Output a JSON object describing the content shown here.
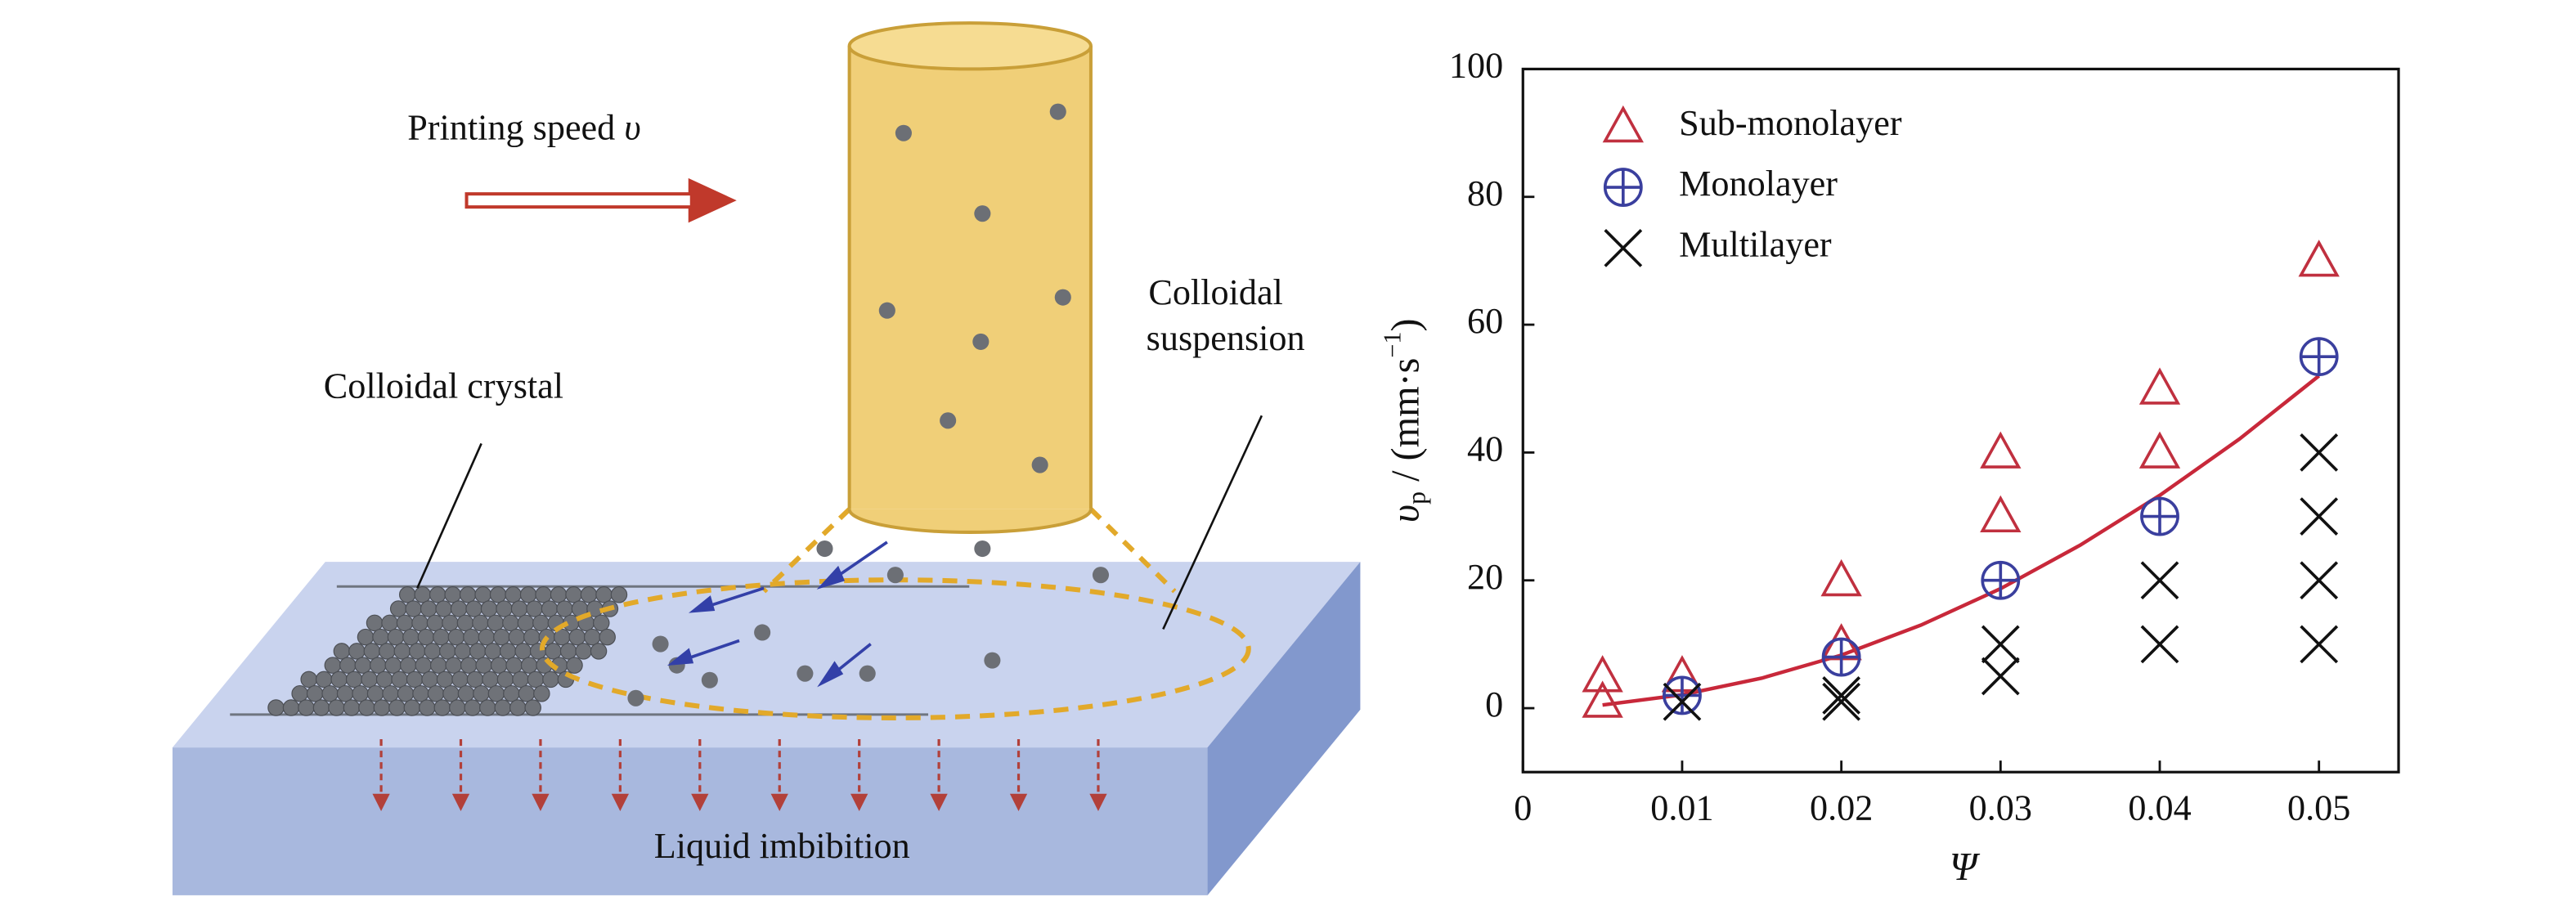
{
  "diagram": {
    "speed_label": {
      "text": "Printing speed ",
      "symbol": "υ"
    },
    "crystal_label": "Colloidal crystal",
    "suspension_label": [
      "Colloidal",
      "suspension"
    ],
    "imbibition_label": "Liquid imbibition"
  },
  "chart_data": {
    "type": "scatter",
    "x_label": "Ψ",
    "y_label": {
      "symbol": "υ",
      "subscript": "p",
      "unit": " / (mm·s",
      "superscript": "−1",
      "close": ")"
    },
    "xlim": [
      0,
      0.055
    ],
    "ylim": [
      -10,
      100
    ],
    "xticks": [
      0,
      0.01,
      0.02,
      0.03,
      0.04,
      0.05
    ],
    "yticks": [
      0,
      20,
      40,
      60,
      80,
      100
    ],
    "legend": "upper left",
    "series": [
      {
        "name": "Sub-monolayer",
        "marker": "triangle",
        "color": "#c0303f",
        "x": [
          0.005,
          0.005,
          0.01,
          0.02,
          0.02,
          0.03,
          0.03,
          0.04,
          0.04,
          0.05
        ],
        "values": [
          5,
          1,
          5,
          20,
          10,
          40,
          30,
          50,
          40,
          70
        ]
      },
      {
        "name": "Monolayer",
        "marker": "circle-plus",
        "color": "#3a3f9e",
        "x": [
          0.01,
          0.02,
          0.03,
          0.04,
          0.05
        ],
        "values": [
          2,
          8,
          20,
          30,
          55
        ]
      },
      {
        "name": "Multilayer",
        "marker": "cross",
        "color": "#111111",
        "x": [
          0.01,
          0.02,
          0.02,
          0.03,
          0.03,
          0.04,
          0.04,
          0.05,
          0.05,
          0.05,
          0.05
        ],
        "values": [
          1,
          2,
          1,
          10,
          5,
          20,
          10,
          40,
          30,
          20,
          10
        ]
      }
    ],
    "fit": {
      "color": "#c8283a",
      "x": [
        0.005,
        0.01,
        0.015,
        0.02,
        0.025,
        0.03,
        0.035,
        0.04,
        0.045,
        0.05
      ],
      "values": [
        0.5,
        2.1,
        4.7,
        8.3,
        13,
        18.7,
        25.5,
        33.3,
        42.1,
        52
      ]
    }
  }
}
